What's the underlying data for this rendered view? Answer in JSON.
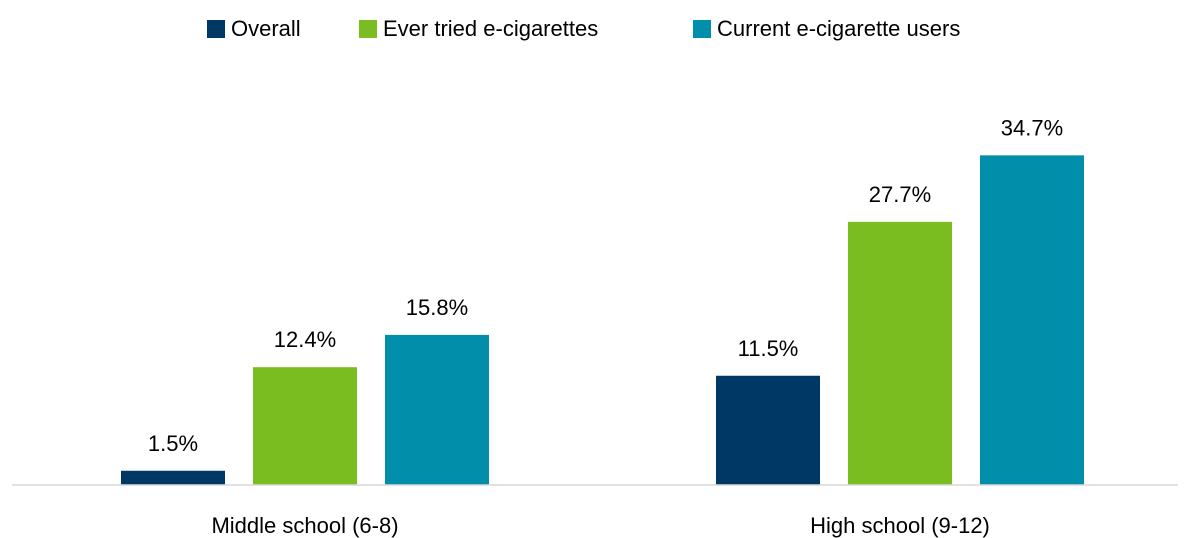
{
  "chart_data": {
    "type": "bar",
    "categories": [
      "Middle school (6-8)",
      "High school (9-12)"
    ],
    "series": [
      {
        "name": "Overall",
        "values": [
          1.5,
          11.5
        ],
        "labels": [
          "1.5%",
          "11.5%"
        ],
        "color": "#003865"
      },
      {
        "name": "Ever tried e-cigarettes",
        "values": [
          12.4,
          27.7
        ],
        "labels": [
          "12.4%",
          "27.7%"
        ],
        "color": "#7ABD21"
      },
      {
        "name": "Current e-cigarette users",
        "values": [
          15.8,
          34.7
        ],
        "labels": [
          "15.8%",
          "34.7%"
        ],
        "color": "#008EAA"
      }
    ],
    "ylim": [
      0,
      40
    ],
    "legend_position": "top",
    "grid": false
  }
}
